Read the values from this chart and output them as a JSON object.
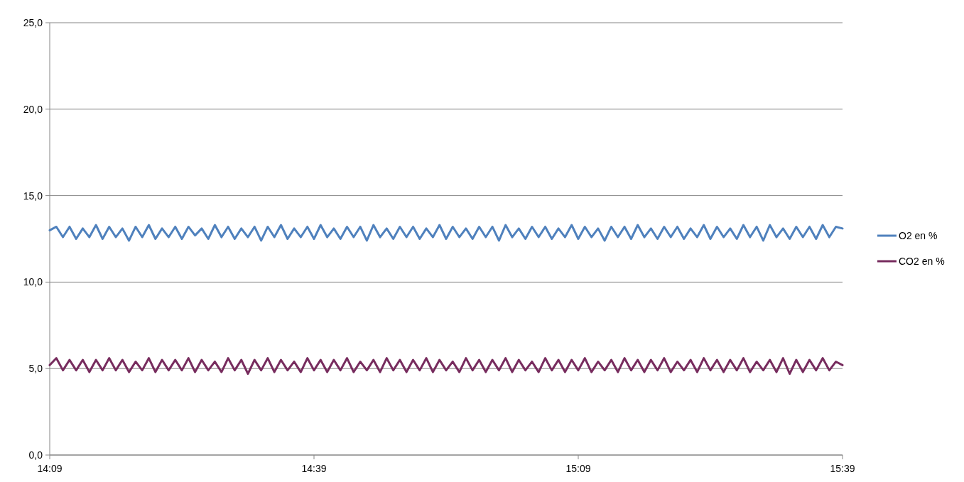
{
  "chart_data": {
    "type": "line",
    "x": [
      14.15,
      14.1625,
      14.175,
      14.1875,
      14.2,
      14.2125,
      14.225,
      14.2375,
      14.25,
      14.2625,
      14.275,
      14.2875,
      14.3,
      14.3125,
      14.325,
      14.3375,
      14.35,
      14.3625,
      14.375,
      14.3875,
      14.4,
      14.4125,
      14.425,
      14.4375,
      14.45,
      14.4625,
      14.475,
      14.4875,
      14.5,
      14.5125,
      14.525,
      14.5375,
      14.55,
      14.5625,
      14.575,
      14.5875,
      14.6,
      14.6125,
      14.625,
      14.6375,
      14.65,
      14.6625,
      14.675,
      14.6875,
      14.7,
      14.7125,
      14.725,
      14.7375,
      14.75,
      14.7625,
      14.775,
      14.7875,
      14.8,
      14.8125,
      14.825,
      14.8375,
      14.85,
      14.8625,
      14.875,
      14.8875,
      14.9,
      14.9125,
      14.925,
      14.9375,
      14.95,
      14.9625,
      14.975,
      14.9875,
      15.0,
      15.0125,
      15.025,
      15.0375,
      15.05,
      15.0625,
      15.075,
      15.0875,
      15.1,
      15.1125,
      15.125,
      15.1375,
      15.15,
      15.1625,
      15.175,
      15.1875,
      15.2,
      15.2125,
      15.225,
      15.2375,
      15.25,
      15.2625,
      15.275,
      15.2875,
      15.3,
      15.3125,
      15.325,
      15.3375,
      15.35,
      15.3625,
      15.375,
      15.3875,
      15.4,
      15.4125,
      15.425,
      15.4375,
      15.45,
      15.4625,
      15.475,
      15.4875,
      15.5,
      15.5125,
      15.525,
      15.5375,
      15.55,
      15.5625,
      15.575,
      15.5875,
      15.6,
      15.6125,
      15.625,
      15.6375,
      15.65
    ],
    "series": [
      {
        "name": "O2 en %",
        "color": "#4f81bd",
        "values": [
          13.0,
          13.2,
          12.6,
          13.2,
          12.5,
          13.1,
          12.6,
          13.3,
          12.5,
          13.2,
          12.6,
          13.1,
          12.4,
          13.2,
          12.6,
          13.3,
          12.5,
          13.1,
          12.6,
          13.2,
          12.5,
          13.2,
          12.7,
          13.1,
          12.5,
          13.3,
          12.6,
          13.2,
          12.5,
          13.1,
          12.6,
          13.2,
          12.4,
          13.2,
          12.6,
          13.3,
          12.5,
          13.1,
          12.6,
          13.2,
          12.5,
          13.3,
          12.6,
          13.1,
          12.5,
          13.2,
          12.6,
          13.2,
          12.4,
          13.3,
          12.6,
          13.1,
          12.5,
          13.2,
          12.6,
          13.2,
          12.5,
          13.1,
          12.6,
          13.3,
          12.5,
          13.2,
          12.6,
          13.1,
          12.5,
          13.2,
          12.6,
          13.2,
          12.4,
          13.3,
          12.6,
          13.1,
          12.5,
          13.2,
          12.6,
          13.2,
          12.5,
          13.1,
          12.6,
          13.3,
          12.5,
          13.2,
          12.6,
          13.1,
          12.4,
          13.2,
          12.6,
          13.2,
          12.5,
          13.3,
          12.6,
          13.1,
          12.5,
          13.2,
          12.6,
          13.2,
          12.5,
          13.1,
          12.6,
          13.3,
          12.5,
          13.2,
          12.6,
          13.1,
          12.5,
          13.3,
          12.6,
          13.2,
          12.4,
          13.3,
          12.6,
          13.1,
          12.5,
          13.2,
          12.6,
          13.2,
          12.5,
          13.3,
          12.6,
          13.2,
          13.1
        ]
      },
      {
        "name": "CO2 en %",
        "color": "#772c5e",
        "values": [
          5.2,
          5.6,
          4.9,
          5.5,
          4.9,
          5.5,
          4.8,
          5.5,
          4.9,
          5.6,
          4.9,
          5.5,
          4.8,
          5.4,
          4.9,
          5.6,
          4.8,
          5.5,
          4.9,
          5.5,
          4.9,
          5.6,
          4.8,
          5.5,
          4.9,
          5.4,
          4.8,
          5.6,
          4.9,
          5.5,
          4.7,
          5.5,
          4.9,
          5.6,
          4.8,
          5.5,
          4.9,
          5.4,
          4.8,
          5.6,
          4.9,
          5.5,
          4.8,
          5.5,
          4.9,
          5.6,
          4.8,
          5.4,
          4.9,
          5.5,
          4.8,
          5.6,
          4.9,
          5.5,
          4.8,
          5.5,
          4.9,
          5.6,
          4.8,
          5.5,
          4.9,
          5.4,
          4.8,
          5.6,
          4.9,
          5.5,
          4.8,
          5.5,
          4.9,
          5.6,
          4.8,
          5.5,
          4.9,
          5.4,
          4.8,
          5.6,
          4.9,
          5.5,
          4.8,
          5.5,
          4.9,
          5.6,
          4.8,
          5.4,
          4.9,
          5.5,
          4.8,
          5.6,
          4.9,
          5.5,
          4.8,
          5.5,
          4.9,
          5.6,
          4.8,
          5.4,
          4.9,
          5.5,
          4.8,
          5.6,
          4.9,
          5.5,
          4.8,
          5.5,
          4.9,
          5.6,
          4.8,
          5.4,
          4.9,
          5.5,
          4.8,
          5.6,
          4.7,
          5.5,
          4.8,
          5.5,
          4.9,
          5.6,
          4.9,
          5.4,
          5.2
        ]
      }
    ],
    "xlim": [
      14.15,
      15.65
    ],
    "xticks": [
      {
        "value": 14.15,
        "label": "14:09"
      },
      {
        "value": 14.65,
        "label": "14:39"
      },
      {
        "value": 15.15,
        "label": "15:09"
      },
      {
        "value": 15.65,
        "label": "15:39"
      }
    ],
    "ylim": [
      0,
      25
    ],
    "yticks": [
      {
        "value": 0,
        "label": "0,0"
      },
      {
        "value": 5,
        "label": "5,0"
      },
      {
        "value": 10,
        "label": "10,0"
      },
      {
        "value": 15,
        "label": "15,0"
      },
      {
        "value": 20,
        "label": "20,0"
      },
      {
        "value": 25,
        "label": "25,0"
      }
    ],
    "grid": "y",
    "legend": "right",
    "marker": "none",
    "line_style": "solid"
  }
}
